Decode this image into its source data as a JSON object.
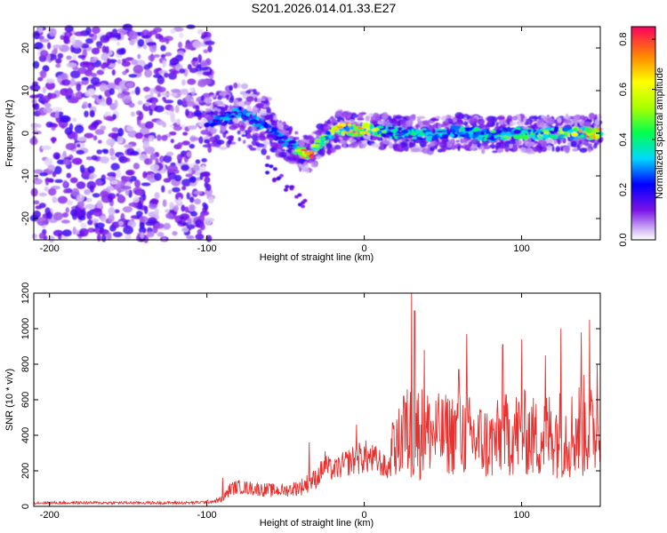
{
  "title": "S201.2026.014.01.33.E27",
  "chart_data": [
    {
      "type": "heatmap",
      "xlabel": "Height of straight line (km)",
      "ylabel": "Frequency (Hz)",
      "xlim": [
        -210,
        150
      ],
      "ylim": [
        -25,
        25
      ],
      "xticks": [
        -200,
        -100,
        0,
        100
      ],
      "yticks": [
        -20,
        -10,
        0,
        10,
        20
      ],
      "noise_region": {
        "x": [
          -210,
          -97
        ],
        "y": [
          -25,
          25
        ]
      },
      "ridge": {
        "x": [
          -100,
          -95,
          -90,
          -85,
          -80,
          -75,
          -70,
          -65,
          -60,
          -55,
          -50,
          -45,
          -40,
          -35,
          -30,
          -25,
          -20,
          -15,
          -10,
          -5,
          0,
          5,
          10,
          20,
          30,
          40,
          50,
          60,
          70,
          80,
          90,
          100,
          110,
          120,
          130,
          140,
          150
        ],
        "y": [
          3,
          3,
          3,
          4,
          5,
          4,
          3,
          2,
          1,
          -1,
          -2,
          -3,
          -4.5,
          -5,
          -3,
          -1,
          0,
          1,
          1,
          0.5,
          1,
          1,
          0.5,
          0,
          0,
          -0.5,
          0,
          0.5,
          0,
          -0.5,
          0,
          0,
          -0.5,
          0,
          0,
          0,
          0
        ],
        "amplitude": [
          0.25,
          0.3,
          0.3,
          0.35,
          0.3,
          0.3,
          0.35,
          0.3,
          0.3,
          0.3,
          0.35,
          0.4,
          0.7,
          0.85,
          0.5,
          0.55,
          0.6,
          0.65,
          0.7,
          0.75,
          0.7,
          0.6,
          0.5,
          0.4,
          0.4,
          0.35,
          0.4,
          0.35,
          0.4,
          0.4,
          0.45,
          0.4,
          0.5,
          0.55,
          0.6,
          0.75,
          0.7
        ]
      },
      "colorbar": {
        "label": "Normalized spectral amplitude",
        "range": [
          0.0,
          0.85
        ],
        "ticks": [
          "0.0",
          "0.2",
          "0.4",
          "0.6",
          "0.8"
        ],
        "tick_values": [
          0.0,
          0.2,
          0.4,
          0.6,
          0.8
        ]
      }
    },
    {
      "type": "line",
      "xlabel": "Height of straight line (km)",
      "ylabel": "SNR (10 * v/v)",
      "xlim": [
        -210,
        150
      ],
      "ylim": [
        0,
        1200
      ],
      "xticks": [
        -200,
        -100,
        0,
        100
      ],
      "yticks": [
        0,
        200,
        400,
        600,
        800,
        1000,
        1200
      ],
      "series": [
        {
          "name": "SNR",
          "color": "#e8312f",
          "x": [
            -210,
            -190,
            -170,
            -150,
            -130,
            -110,
            -100,
            -95,
            -90,
            -85,
            -80,
            -70,
            -60,
            -50,
            -40,
            -30,
            -25,
            -20,
            -10,
            0,
            10,
            15,
            17,
            25,
            30,
            40,
            50,
            60,
            70,
            80,
            90,
            100,
            110,
            120,
            130,
            140,
            145,
            150
          ],
          "base": [
            20,
            20,
            20,
            20,
            20,
            20,
            25,
            30,
            40,
            100,
            110,
            100,
            90,
            90,
            110,
            160,
            230,
            200,
            250,
            280,
            250,
            200,
            280,
            400,
            420,
            420,
            400,
            420,
            380,
            350,
            400,
            420,
            380,
            420,
            400,
            450,
            420,
            380
          ],
          "amp": [
            8,
            8,
            8,
            8,
            8,
            8,
            10,
            12,
            20,
            40,
            40,
            40,
            40,
            35,
            50,
            60,
            70,
            60,
            80,
            100,
            80,
            60,
            120,
            250,
            300,
            250,
            230,
            250,
            230,
            220,
            240,
            250,
            230,
            260,
            250,
            300,
            250,
            200
          ],
          "peaks": [
            [
              -90,
              160
            ],
            [
              -35,
              360
            ],
            [
              -25,
              310
            ],
            [
              -5,
              460
            ],
            [
              18,
              470
            ],
            [
              25,
              620
            ],
            [
              30,
              1200
            ],
            [
              32,
              1100
            ],
            [
              38,
              880
            ],
            [
              60,
              770
            ],
            [
              65,
              970
            ],
            [
              88,
              910
            ],
            [
              100,
              940
            ],
            [
              115,
              850
            ],
            [
              125,
              1000
            ],
            [
              138,
              980
            ],
            [
              143,
              1050
            ],
            [
              148,
              800
            ]
          ]
        }
      ]
    }
  ]
}
